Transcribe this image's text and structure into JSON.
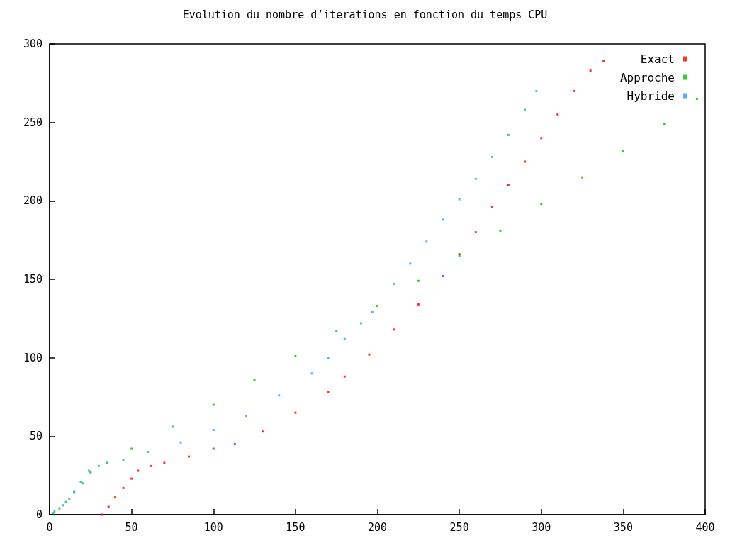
{
  "chart_data": {
    "type": "scatter",
    "title": "Evolution du nombre d’iterations en fonction du temps CPU",
    "xlim": [
      0,
      400
    ],
    "xticks": [
      0,
      50,
      100,
      150,
      200,
      250,
      300,
      350,
      400
    ],
    "ylim": [
      0,
      300
    ],
    "yticks": [
      0,
      50,
      100,
      150,
      200,
      250,
      300
    ],
    "grid": false,
    "legend": "top right",
    "marker": "square",
    "series": [
      {
        "name": "Exact",
        "color": "#ff0000",
        "x": [
          32,
          36,
          40,
          45,
          50,
          54,
          62,
          70,
          85,
          100,
          113,
          130,
          150,
          170,
          180,
          195,
          210,
          225,
          240,
          250,
          260,
          270,
          280,
          290,
          300,
          310,
          320,
          330,
          338
        ],
        "values": [
          0,
          5,
          11,
          17,
          23,
          28,
          31,
          33,
          37,
          42,
          45,
          53,
          65,
          78,
          88,
          102,
          118,
          134,
          152,
          166,
          180,
          196,
          210,
          225,
          240,
          255,
          270,
          283,
          289
        ]
      },
      {
        "name": "Approche",
        "color": "#00c000",
        "x": [
          2,
          6,
          10,
          15,
          20,
          25,
          35,
          50,
          75,
          100,
          125,
          150,
          175,
          200,
          225,
          250,
          275,
          300,
          325,
          350,
          375,
          395
        ],
        "values": [
          1,
          4,
          8,
          14,
          20,
          27,
          33,
          42,
          56,
          70,
          86,
          101,
          117,
          133,
          149,
          165,
          181,
          198,
          215,
          232,
          249,
          265
        ]
      },
      {
        "name": "Hybride",
        "color": "#3399ff",
        "x": [
          3,
          8,
          12,
          15,
          19,
          24,
          30,
          45,
          60,
          80,
          100,
          120,
          140,
          160,
          170,
          180,
          190,
          197,
          210,
          220,
          230,
          240,
          250,
          260,
          270,
          280,
          290,
          297
        ],
        "values": [
          2,
          6,
          10,
          15,
          21,
          28,
          31,
          35,
          40,
          46,
          54,
          63,
          76,
          90,
          100,
          112,
          122,
          129,
          147,
          160,
          174,
          188,
          201,
          214,
          228,
          242,
          258,
          270
        ]
      }
    ]
  }
}
